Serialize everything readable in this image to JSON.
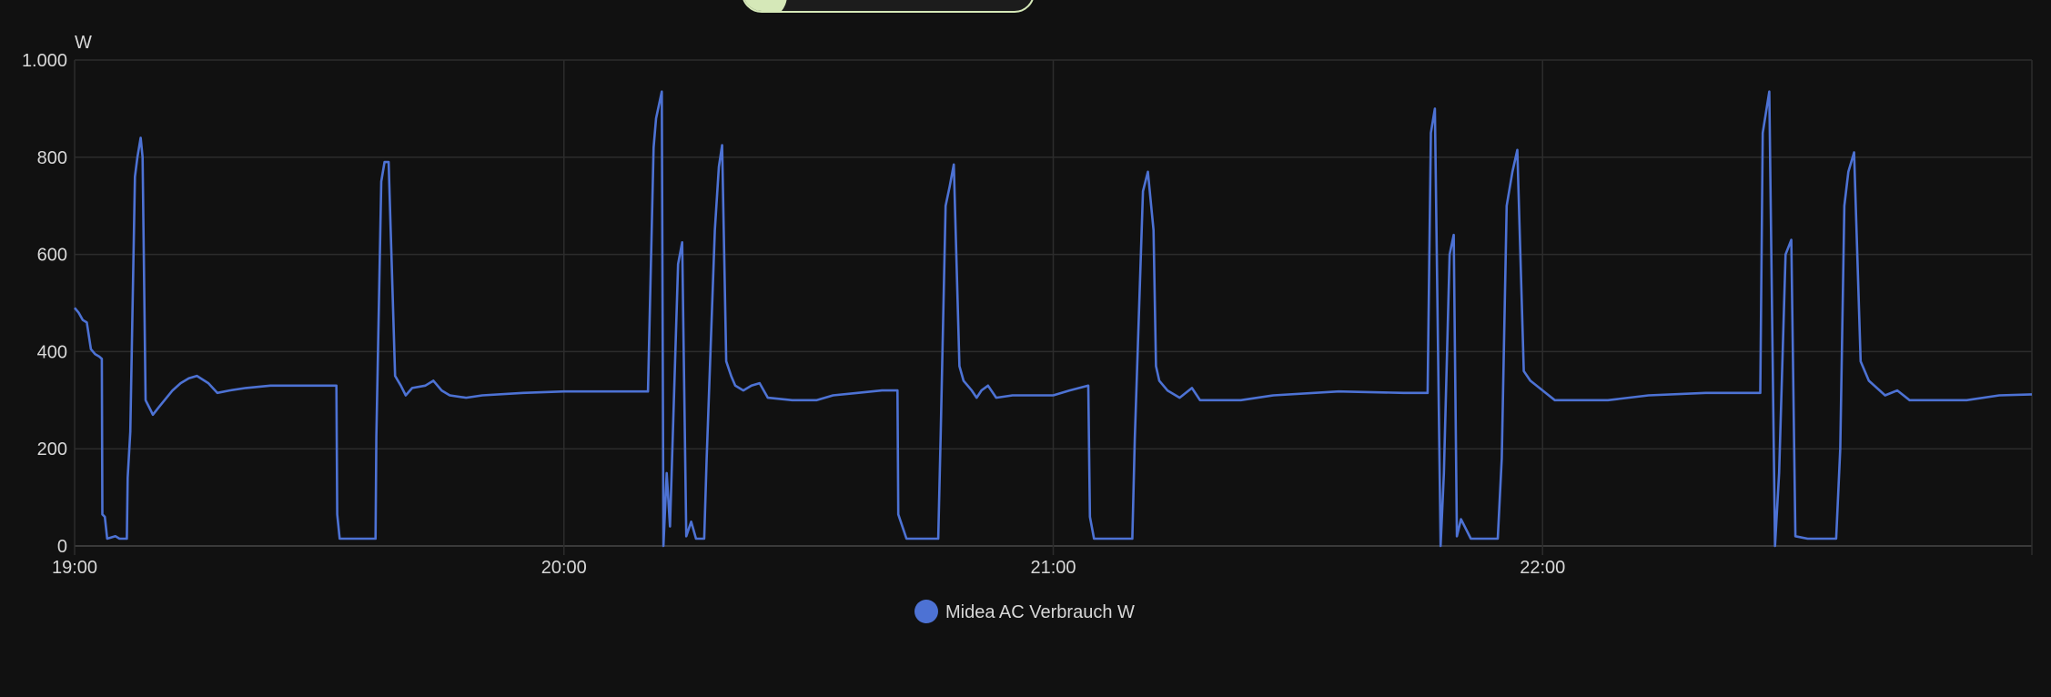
{
  "colors": {
    "background": "#111111",
    "grid": "#2c2c2c",
    "series": "#4d72d4",
    "text": "#d8d8d8",
    "pill_accent": "#d5e8b8"
  },
  "chart_data": {
    "type": "line",
    "title": "",
    "ylabel": "W",
    "xlabel": "",
    "xlim": [
      "19:00",
      "23:00"
    ],
    "ylim": [
      0,
      1000
    ],
    "y_ticks": [
      {
        "value": 0,
        "label": "0"
      },
      {
        "value": 200,
        "label": "200"
      },
      {
        "value": 400,
        "label": "400"
      },
      {
        "value": 600,
        "label": "600"
      },
      {
        "value": 800,
        "label": "800"
      },
      {
        "value": 1000,
        "label": "1.000"
      }
    ],
    "x_ticks": [
      "19:00",
      "20:00",
      "21:00",
      "22:00"
    ],
    "grid": true,
    "legend": {
      "placement": "bottom-center",
      "entries": [
        {
          "label": "Midea AC Verbrauch W",
          "color": "#4d72d4"
        }
      ]
    },
    "series": [
      {
        "name": "Midea AC Verbrauch W",
        "points": [
          [
            "19:00:00",
            490
          ],
          [
            "19:00:30",
            480
          ],
          [
            "19:01:00",
            465
          ],
          [
            "19:01:30",
            460
          ],
          [
            "19:02:00",
            405
          ],
          [
            "19:02:30",
            395
          ],
          [
            "19:03:00",
            390
          ],
          [
            "19:03:20",
            385
          ],
          [
            "19:03:24",
            65
          ],
          [
            "19:03:42",
            60
          ],
          [
            "19:04:00",
            15
          ],
          [
            "19:05:00",
            20
          ],
          [
            "19:05:30",
            15
          ],
          [
            "19:06:24",
            15
          ],
          [
            "19:06:30",
            140
          ],
          [
            "19:06:50",
            235
          ],
          [
            "19:07:24",
            760
          ],
          [
            "19:07:42",
            800
          ],
          [
            "19:08:06",
            840
          ],
          [
            "19:08:20",
            800
          ],
          [
            "19:08:42",
            300
          ],
          [
            "19:09:18",
            280
          ],
          [
            "19:09:36",
            270
          ],
          [
            "19:10:18",
            285
          ],
          [
            "19:12:00",
            320
          ],
          [
            "19:13:00",
            335
          ],
          [
            "19:14:00",
            345
          ],
          [
            "19:15:00",
            350
          ],
          [
            "19:16:24",
            335
          ],
          [
            "19:17:30",
            315
          ],
          [
            "19:19:00",
            320
          ],
          [
            "19:21:00",
            325
          ],
          [
            "19:24:00",
            330
          ],
          [
            "19:32:06",
            330
          ],
          [
            "19:32:12",
            65
          ],
          [
            "19:32:30",
            15
          ],
          [
            "19:36:54",
            15
          ],
          [
            "19:37:00",
            225
          ],
          [
            "19:37:36",
            750
          ],
          [
            "19:38:00",
            790
          ],
          [
            "19:38:30",
            790
          ],
          [
            "19:39:18",
            350
          ],
          [
            "19:40:00",
            330
          ],
          [
            "19:40:36",
            310
          ],
          [
            "19:41:24",
            325
          ],
          [
            "19:43:00",
            330
          ],
          [
            "19:44:00",
            340
          ],
          [
            "19:45:00",
            320
          ],
          [
            "19:46:00",
            310
          ],
          [
            "19:48:00",
            305
          ],
          [
            "19:50:00",
            310
          ],
          [
            "19:55:00",
            315
          ],
          [
            "20:00:00",
            318
          ],
          [
            "20:10:18",
            318
          ],
          [
            "20:11:00",
            820
          ],
          [
            "20:11:18",
            880
          ],
          [
            "20:12:00",
            935
          ],
          [
            "20:12:12",
            0
          ],
          [
            "20:12:36",
            150
          ],
          [
            "20:13:00",
            40
          ],
          [
            "20:14:00",
            580
          ],
          [
            "20:14:30",
            625
          ],
          [
            "20:15:00",
            20
          ],
          [
            "20:15:36",
            50
          ],
          [
            "20:16:12",
            15
          ],
          [
            "20:17:12",
            15
          ],
          [
            "20:17:30",
            180
          ],
          [
            "20:18:30",
            650
          ],
          [
            "20:19:00",
            780
          ],
          [
            "20:19:24",
            825
          ],
          [
            "20:19:54",
            380
          ],
          [
            "20:20:30",
            350
          ],
          [
            "20:21:00",
            330
          ],
          [
            "20:22:00",
            320
          ],
          [
            "20:23:00",
            330
          ],
          [
            "20:24:00",
            335
          ],
          [
            "20:25:00",
            305
          ],
          [
            "20:28:00",
            300
          ],
          [
            "20:31:00",
            300
          ],
          [
            "20:33:00",
            310
          ],
          [
            "20:36:00",
            315
          ],
          [
            "20:39:00",
            320
          ],
          [
            "20:40:54",
            320
          ],
          [
            "20:41:00",
            65
          ],
          [
            "20:42:00",
            15
          ],
          [
            "20:45:54",
            15
          ],
          [
            "20:46:12",
            230
          ],
          [
            "20:46:48",
            700
          ],
          [
            "20:47:18",
            740
          ],
          [
            "20:47:48",
            785
          ],
          [
            "20:48:30",
            370
          ],
          [
            "20:49:00",
            340
          ],
          [
            "20:50:00",
            320
          ],
          [
            "20:50:36",
            305
          ],
          [
            "20:51:12",
            320
          ],
          [
            "20:52:00",
            330
          ],
          [
            "20:53:00",
            305
          ],
          [
            "20:55:00",
            310
          ],
          [
            "21:00:00",
            310
          ],
          [
            "21:02:00",
            320
          ],
          [
            "21:04:18",
            330
          ],
          [
            "21:04:30",
            60
          ],
          [
            "21:05:00",
            15
          ],
          [
            "21:09:42",
            15
          ],
          [
            "21:10:00",
            220
          ],
          [
            "21:11:00",
            730
          ],
          [
            "21:11:36",
            770
          ],
          [
            "21:12:18",
            650
          ],
          [
            "21:12:36",
            370
          ],
          [
            "21:13:00",
            340
          ],
          [
            "21:14:00",
            320
          ],
          [
            "21:15:30",
            305
          ],
          [
            "21:17:00",
            325
          ],
          [
            "21:18:00",
            300
          ],
          [
            "21:23:00",
            300
          ],
          [
            "21:27:00",
            310
          ],
          [
            "21:35:00",
            318
          ],
          [
            "21:43:00",
            315
          ],
          [
            "21:45:54",
            315
          ],
          [
            "21:46:18",
            850
          ],
          [
            "21:46:48",
            900
          ],
          [
            "21:47:30",
            0
          ],
          [
            "21:47:54",
            150
          ],
          [
            "21:48:36",
            600
          ],
          [
            "21:49:06",
            640
          ],
          [
            "21:49:30",
            20
          ],
          [
            "21:50:00",
            55
          ],
          [
            "21:51:12",
            15
          ],
          [
            "21:54:30",
            15
          ],
          [
            "21:55:00",
            180
          ],
          [
            "21:55:36",
            700
          ],
          [
            "21:56:18",
            770
          ],
          [
            "21:56:54",
            815
          ],
          [
            "21:57:42",
            360
          ],
          [
            "21:58:30",
            340
          ],
          [
            "22:00:00",
            320
          ],
          [
            "22:01:30",
            300
          ],
          [
            "22:08:00",
            300
          ],
          [
            "22:13:00",
            310
          ],
          [
            "22:20:00",
            315
          ],
          [
            "22:26:42",
            315
          ],
          [
            "22:27:00",
            850
          ],
          [
            "22:27:48",
            935
          ],
          [
            "22:28:30",
            0
          ],
          [
            "22:29:00",
            150
          ],
          [
            "22:29:48",
            600
          ],
          [
            "22:30:30",
            630
          ],
          [
            "22:31:00",
            20
          ],
          [
            "22:32:30",
            15
          ],
          [
            "22:36:00",
            15
          ],
          [
            "22:36:30",
            200
          ],
          [
            "22:37:00",
            700
          ],
          [
            "22:37:30",
            770
          ],
          [
            "22:38:12",
            810
          ],
          [
            "22:39:00",
            380
          ],
          [
            "22:40:00",
            340
          ],
          [
            "22:42:00",
            310
          ],
          [
            "22:43:30",
            320
          ],
          [
            "22:45:00",
            300
          ],
          [
            "22:52:00",
            300
          ],
          [
            "22:56:00",
            310
          ],
          [
            "23:00:00",
            312
          ]
        ]
      }
    ]
  }
}
